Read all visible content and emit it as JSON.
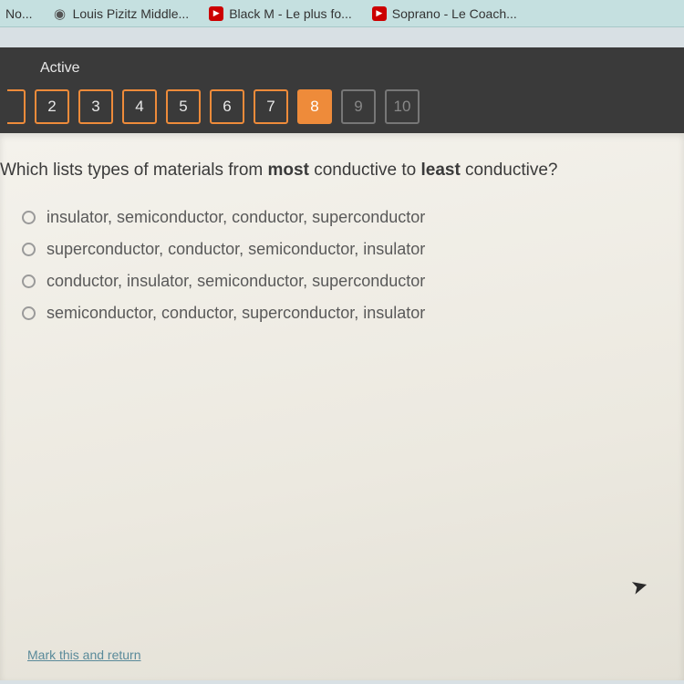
{
  "bookmarks": [
    {
      "label": "No...",
      "icon": "none"
    },
    {
      "label": "Louis Pizitz Middle...",
      "icon": "globe"
    },
    {
      "label": "Black M - Le plus fo...",
      "icon": "youtube"
    },
    {
      "label": "Soprano - Le Coach...",
      "icon": "youtube"
    }
  ],
  "tab": {
    "label": "Active"
  },
  "question_numbers": [
    {
      "n": "",
      "state": "edge"
    },
    {
      "n": "2",
      "state": "normal"
    },
    {
      "n": "3",
      "state": "normal"
    },
    {
      "n": "4",
      "state": "normal"
    },
    {
      "n": "5",
      "state": "normal"
    },
    {
      "n": "6",
      "state": "normal"
    },
    {
      "n": "7",
      "state": "normal"
    },
    {
      "n": "8",
      "state": "current"
    },
    {
      "n": "9",
      "state": "future"
    },
    {
      "n": "10",
      "state": "future"
    }
  ],
  "question": {
    "prefix": "Which lists types of materials from ",
    "bold1": "most",
    "mid": " conductive to ",
    "bold2": "least",
    "suffix": " conductive?"
  },
  "options": [
    "insulator, semiconductor, conductor, superconductor",
    "superconductor, conductor, semiconductor, insulator",
    "conductor, insulator, semiconductor, superconductor",
    "semiconductor, conductor, superconductor, insulator"
  ],
  "footer": {
    "mark_return": "Mark this and return"
  },
  "colors": {
    "accent": "#ee8b3a",
    "dark_bar": "#3a3a3a",
    "content_bg": "#f2f0e8"
  }
}
